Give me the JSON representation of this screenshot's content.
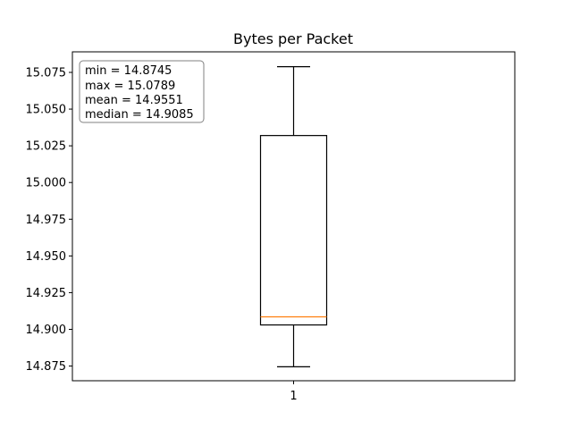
{
  "chart_data": {
    "type": "box",
    "title": "Bytes per Packet",
    "xlabel": "",
    "ylabel": "",
    "categories": [
      "1"
    ],
    "ylim": [
      14.865,
      15.089
    ],
    "yticks": [
      {
        "value": 14.875,
        "label": "14.875"
      },
      {
        "value": 14.9,
        "label": "14.900"
      },
      {
        "value": 14.925,
        "label": "14.925"
      },
      {
        "value": 14.95,
        "label": "14.950"
      },
      {
        "value": 14.975,
        "label": "14.975"
      },
      {
        "value": 15.0,
        "label": "15.000"
      },
      {
        "value": 15.025,
        "label": "15.025"
      },
      {
        "value": 15.05,
        "label": "15.050"
      },
      {
        "value": 15.075,
        "label": "15.075"
      }
    ],
    "box": {
      "whisker_low": 14.8745,
      "q1": 14.903,
      "median": 14.9085,
      "q3": 15.032,
      "whisker_high": 15.0789
    },
    "stats_box": {
      "lines": [
        "min = 14.8745",
        "max = 15.0789",
        "mean = 14.9551",
        "median = 14.9085"
      ],
      "placement": "top-left"
    },
    "grid": false,
    "colors": {
      "box": "#000000",
      "median": "#ff7f0e",
      "stats_border": "#808080"
    }
  }
}
